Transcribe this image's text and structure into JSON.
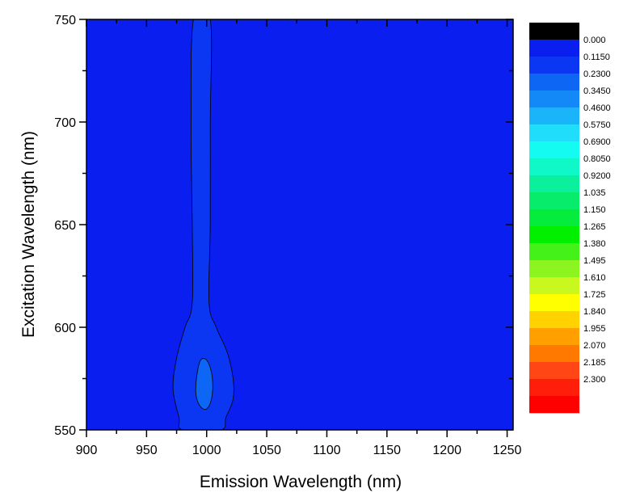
{
  "chart_data": {
    "type": "heatmap",
    "subtype": "contour",
    "xlabel": "Emission Wavelength (nm)",
    "ylabel": "Excitation Wavelength (nm)",
    "xlim": [
      900,
      1255
    ],
    "ylim": [
      550,
      750
    ],
    "x_ticks": [
      900,
      950,
      1000,
      1050,
      1100,
      1150,
      1200,
      1250
    ],
    "y_ticks": [
      550,
      600,
      650,
      700,
      750
    ],
    "background_level_color": "#0A1EF0",
    "contours": [
      {
        "name": "level-0.1150",
        "color": "#0C37F2",
        "points": [
          [
            989,
            750
          ],
          [
            1003,
            750
          ],
          [
            1003,
            700
          ],
          [
            1003,
            650
          ],
          [
            1002,
            612
          ],
          [
            1008,
            600
          ],
          [
            1017,
            588
          ],
          [
            1022,
            575
          ],
          [
            1022,
            565
          ],
          [
            1016,
            556
          ],
          [
            1012,
            550
          ],
          [
            980,
            550
          ],
          [
            977,
            556
          ],
          [
            972,
            570
          ],
          [
            975,
            585
          ],
          [
            982,
            600
          ],
          [
            988,
            612
          ],
          [
            988,
            650
          ],
          [
            987,
            700
          ]
        ]
      },
      {
        "name": "level-0.2300",
        "color": "#0E66F5",
        "points": [
          [
            995,
            584
          ],
          [
            1000,
            584
          ],
          [
            1004,
            578
          ],
          [
            1005,
            570
          ],
          [
            1003,
            563
          ],
          [
            999,
            560
          ],
          [
            994,
            562
          ],
          [
            991,
            568
          ],
          [
            992,
            577
          ]
        ]
      }
    ],
    "legend": {
      "placement": "right",
      "levels": [
        {
          "label": "0.000",
          "color": "#000000"
        },
        {
          "label": "0.1150",
          "color": "#0A1EF0"
        },
        {
          "label": "0.2300",
          "color": "#0C37F2"
        },
        {
          "label": "0.3450",
          "color": "#0E66F5"
        },
        {
          "label": "0.4600",
          "color": "#1388F7"
        },
        {
          "label": "0.5750",
          "color": "#19B4F9"
        },
        {
          "label": "0.6900",
          "color": "#1FDDFB"
        },
        {
          "label": "0.8050",
          "color": "#14FBF2"
        },
        {
          "label": "0.9200",
          "color": "#0FF8C8"
        },
        {
          "label": "1.035",
          "color": "#0AF09C"
        },
        {
          "label": "1.150",
          "color": "#08EC6C"
        },
        {
          "label": "1.265",
          "color": "#05EC3C"
        },
        {
          "label": "1.380",
          "color": "#00F000"
        },
        {
          "label": "1.495",
          "color": "#44F21A"
        },
        {
          "label": "1.610",
          "color": "#8CF41E"
        },
        {
          "label": "1.725",
          "color": "#C8F81E"
        },
        {
          "label": "1.840",
          "color": "#FFFF00"
        },
        {
          "label": "1.955",
          "color": "#FFD200"
        },
        {
          "label": "2.070",
          "color": "#FFA000"
        },
        {
          "label": "2.185",
          "color": "#FF7800"
        },
        {
          "label": "2.300",
          "color": "#FF4614"
        },
        {
          "label": "",
          "color": "#FF1E0A"
        },
        {
          "label": "",
          "color": "#FF0000"
        }
      ]
    }
  }
}
